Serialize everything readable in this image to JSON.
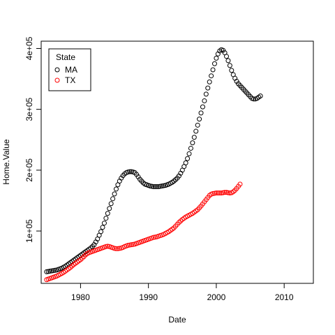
{
  "chart_data": {
    "type": "scatter",
    "xlabel": "Date",
    "ylabel": "Home.Value",
    "xlim": [
      1974.2,
      2014.3
    ],
    "ylim": [
      14000,
      412000
    ],
    "x_ticks": [
      {
        "value": 1980,
        "label": "1980"
      },
      {
        "value": 1990,
        "label": "1990"
      },
      {
        "value": 2000,
        "label": "2000"
      },
      {
        "value": 2010,
        "label": "2010"
      }
    ],
    "y_ticks": [
      {
        "value": 100000,
        "label": "1e+05"
      },
      {
        "value": 200000,
        "label": "2e+05"
      },
      {
        "value": 300000,
        "label": "3e+05"
      },
      {
        "value": 400000,
        "label": "4e+05"
      }
    ],
    "legend": {
      "title": "State",
      "position": "top-left"
    },
    "x_start": 1975.0,
    "x_step": 0.25,
    "series": [
      {
        "name": "MA",
        "color": "#000000",
        "marker": "open-circle",
        "values": [
          33000,
          33500,
          34000,
          34500,
          35000,
          35500,
          36000,
          37000,
          38000,
          39000,
          40500,
          42000,
          44000,
          46000,
          48000,
          50000,
          52000,
          54000,
          56000,
          58000,
          60000,
          62000,
          64000,
          66000,
          68000,
          70000,
          72000,
          74500,
          77500,
          82000,
          87000,
          93000,
          99000,
          106000,
          113000,
          121000,
          129000,
          137000,
          145000,
          153000,
          161000,
          169000,
          176000,
          182000,
          187000,
          191000,
          194000,
          196000,
          197000,
          197500,
          197500,
          197000,
          196000,
          193000,
          189000,
          185000,
          182000,
          179000,
          177000,
          176000,
          175000,
          174000,
          173500,
          173000,
          173000,
          173000,
          173000,
          173500,
          174000,
          174500,
          175000,
          176000,
          177000,
          178500,
          180000,
          182000,
          184500,
          187000,
          190500,
          195000,
          200000,
          206000,
          212000,
          219000,
          227000,
          236000,
          245000,
          254000,
          264000,
          274000,
          284000,
          294000,
          304000,
          314000,
          325000,
          335000,
          345000,
          355000,
          365000,
          375000,
          384000,
          391000,
          396000,
          398000,
          397000,
          393000,
          387000,
          380000,
          372000,
          364000,
          357000,
          351000,
          346000,
          342000,
          339000,
          336000,
          333000,
          330000,
          327000,
          324000,
          321000,
          318000,
          317000,
          317000,
          318000,
          320000,
          322000
        ]
      },
      {
        "name": "TX",
        "color": "#ff0000",
        "marker": "open-circle",
        "values": [
          20000,
          21000,
          22000,
          23000,
          24000,
          25000,
          26000,
          27500,
          29000,
          30500,
          32000,
          34000,
          36000,
          38000,
          40000,
          42500,
          45000,
          47000,
          49000,
          51000,
          53000,
          55500,
          58000,
          61000,
          63000,
          64500,
          65500,
          66500,
          67500,
          68500,
          69500,
          70500,
          71500,
          72500,
          73500,
          74500,
          75000,
          74500,
          73500,
          72500,
          71500,
          71000,
          71000,
          71500,
          72000,
          73000,
          74500,
          75500,
          76500,
          77000,
          77500,
          78000,
          78500,
          79500,
          80500,
          81500,
          82500,
          83500,
          84500,
          85500,
          86500,
          87500,
          88500,
          89500,
          90000,
          90500,
          91500,
          92500,
          93500,
          94500,
          96000,
          97500,
          99000,
          101000,
          103000,
          105000,
          108000,
          111000,
          114000,
          116500,
          119000,
          121000,
          123000,
          124500,
          126000,
          127500,
          129000,
          131000,
          133000,
          135000,
          138000,
          141000,
          144500,
          148000,
          151500,
          155000,
          158500,
          160500,
          161500,
          162000,
          162500,
          162500,
          162500,
          162500,
          163000,
          163500,
          163500,
          163000,
          162500,
          163000,
          164500,
          167000,
          170000,
          173500,
          177000
        ]
      }
    ]
  }
}
